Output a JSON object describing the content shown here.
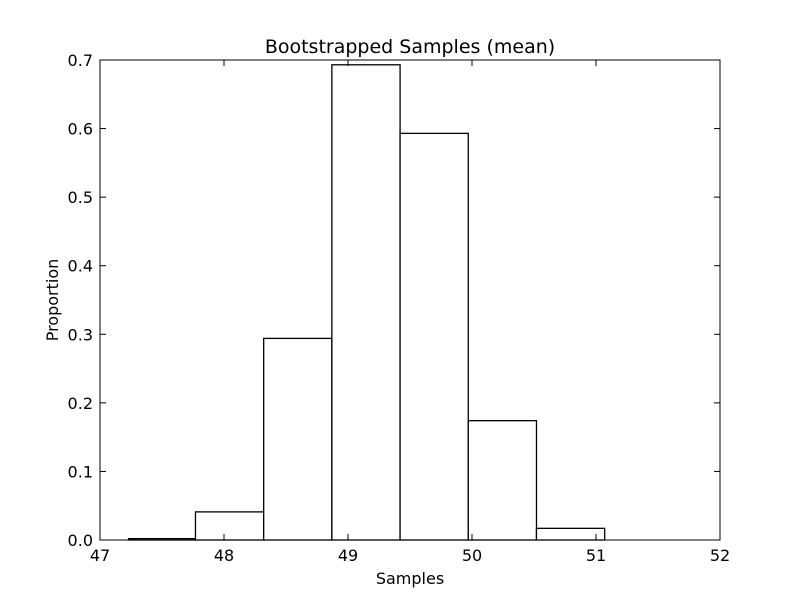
{
  "chart_data": {
    "type": "bar",
    "subtype": "histogram",
    "title": "Bootstrapped Samples (mean)",
    "xlabel": "Samples",
    "ylabel": "Proportion",
    "xlim": [
      47,
      52
    ],
    "ylim": [
      0,
      0.7
    ],
    "xticks": [
      "47",
      "48",
      "49",
      "50",
      "51",
      "52"
    ],
    "yticks": [
      "0.0",
      "0.1",
      "0.2",
      "0.3",
      "0.4",
      "0.5",
      "0.6",
      "0.7"
    ],
    "bin_edges": [
      47.23,
      47.77,
      48.32,
      48.87,
      49.42,
      49.97,
      50.52,
      51.07,
      51.62
    ],
    "values": [
      0.002,
      0.041,
      0.294,
      0.693,
      0.593,
      0.174,
      0.017,
      0.0
    ],
    "grid": false,
    "legend": "none",
    "colors": {
      "bar_fill": "#ffffff",
      "bar_edge": "#000000",
      "axes": "#000000",
      "background": "#ffffff"
    }
  }
}
